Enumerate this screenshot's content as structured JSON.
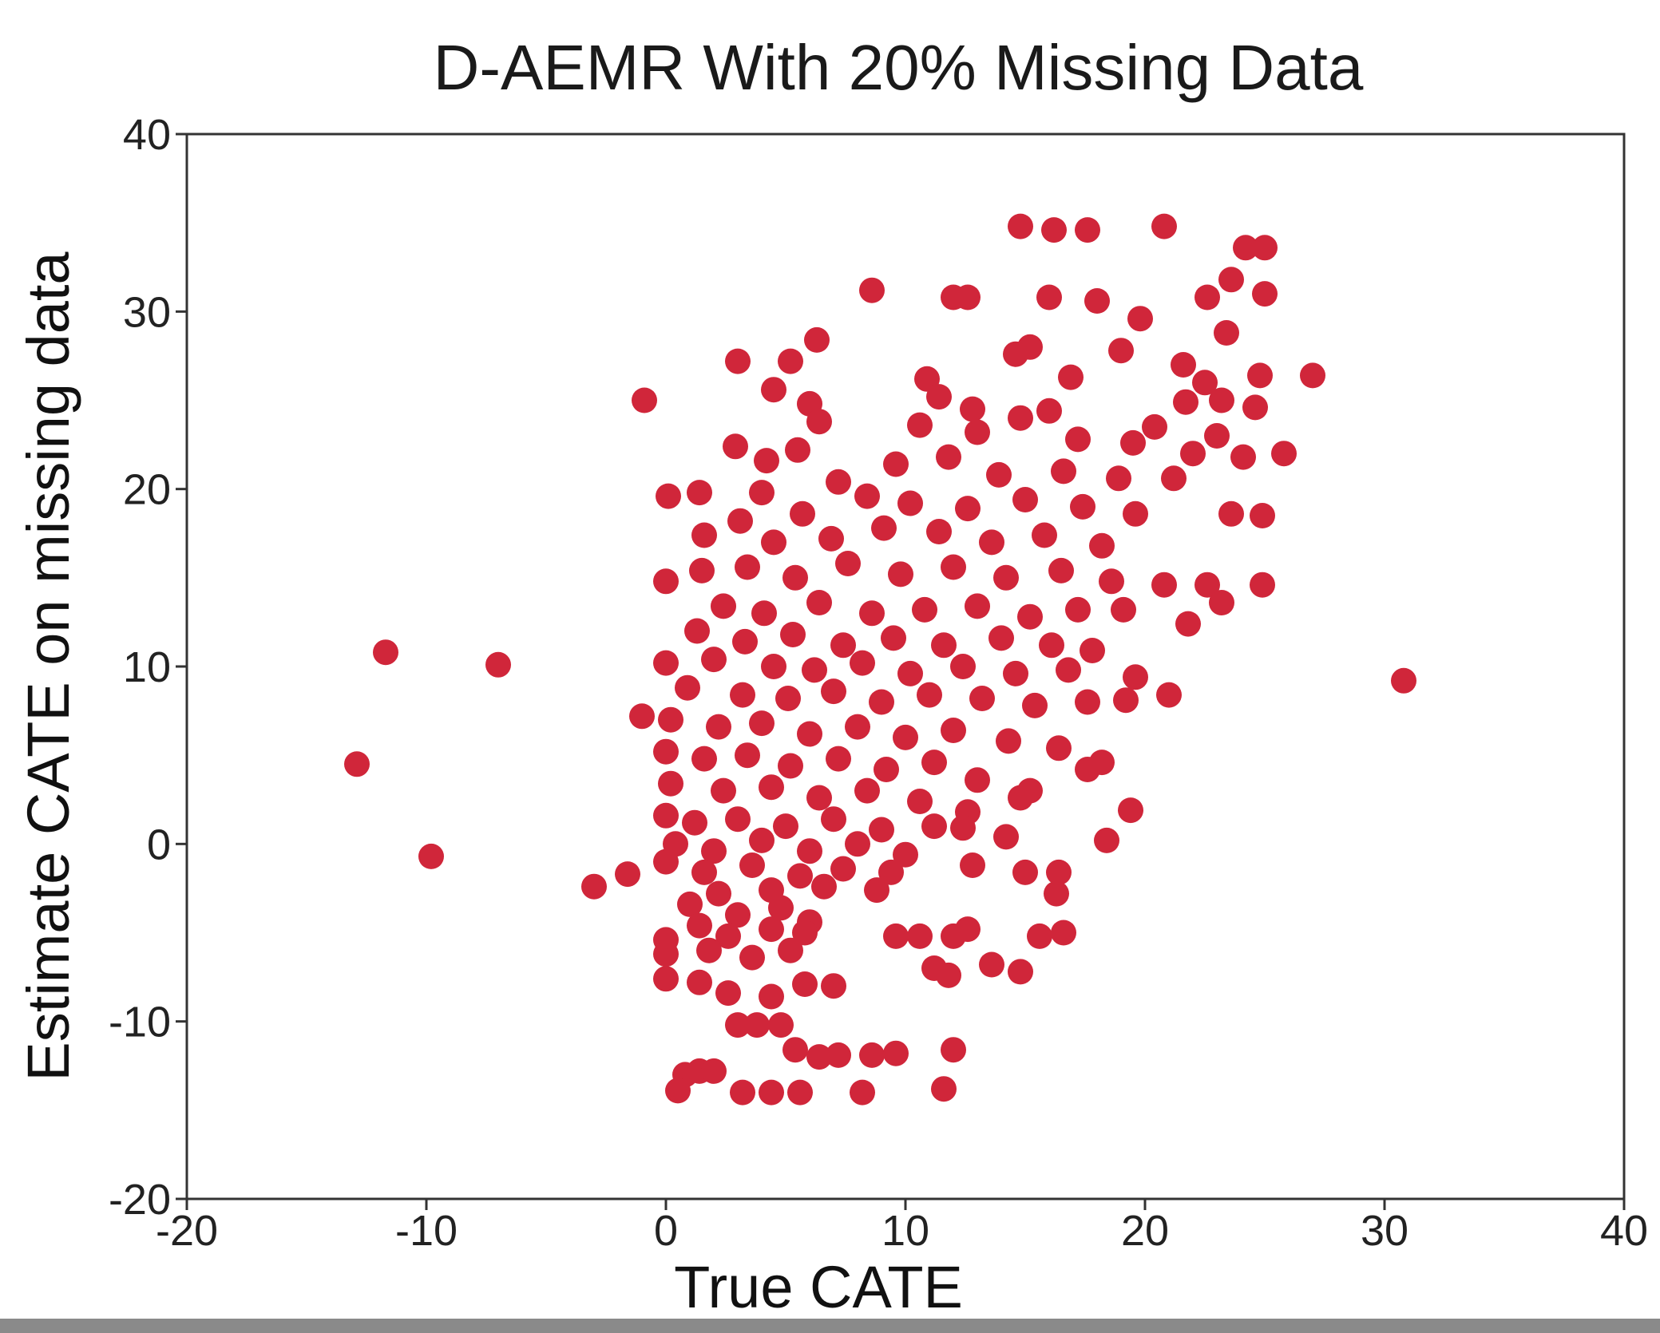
{
  "chart_data": {
    "type": "scatter",
    "title": "D-AEMR With 20% Missing Data",
    "xlabel": "True CATE",
    "ylabel": "Estimate CATE on missing data",
    "xlim": [
      -20,
      40
    ],
    "ylim": [
      -20,
      40
    ],
    "xticks": [
      "-20",
      "-10",
      "0",
      "10",
      "20",
      "30",
      "40"
    ],
    "yticks": [
      "-20",
      "-10",
      "0",
      "10",
      "20",
      "30",
      "40"
    ],
    "grid": false,
    "legend": "none",
    "marker_color": "#d0263a",
    "series": [
      {
        "points": [
          [
            -12.9,
            4.5
          ],
          [
            -11.7,
            10.8
          ],
          [
            -9.8,
            -0.7
          ],
          [
            -7.0,
            10.1
          ],
          [
            -3.0,
            -2.4
          ],
          [
            -1.6,
            -1.7
          ],
          [
            -0.9,
            25.0
          ],
          [
            -1.0,
            7.2
          ],
          [
            30.8,
            9.2
          ],
          [
            27.0,
            26.4
          ],
          [
            25.8,
            22.0
          ],
          [
            14.8,
            34.8
          ],
          [
            16.2,
            34.6
          ],
          [
            17.6,
            34.6
          ],
          [
            20.8,
            34.8
          ],
          [
            24.2,
            33.6
          ],
          [
            25.0,
            33.6
          ],
          [
            8.6,
            31.2
          ],
          [
            12.0,
            30.8
          ],
          [
            12.6,
            30.8
          ],
          [
            16.0,
            30.8
          ],
          [
            18.0,
            30.6
          ],
          [
            22.6,
            30.8
          ],
          [
            25.0,
            31.0
          ],
          [
            23.6,
            31.8
          ],
          [
            19.8,
            29.6
          ],
          [
            23.4,
            28.8
          ],
          [
            3.0,
            27.2
          ],
          [
            5.2,
            27.2
          ],
          [
            6.3,
            28.4
          ],
          [
            14.6,
            27.6
          ],
          [
            15.2,
            28.0
          ],
          [
            19.0,
            27.8
          ],
          [
            21.6,
            27.0
          ],
          [
            10.9,
            26.2
          ],
          [
            16.9,
            26.3
          ],
          [
            24.8,
            26.4
          ],
          [
            22.5,
            26.0
          ],
          [
            23.2,
            25.0
          ],
          [
            4.5,
            25.6
          ],
          [
            6.0,
            24.8
          ],
          [
            11.4,
            25.2
          ],
          [
            12.8,
            24.5
          ],
          [
            16.0,
            24.4
          ],
          [
            21.7,
            24.9
          ],
          [
            24.6,
            24.6
          ],
          [
            6.4,
            23.8
          ],
          [
            13.0,
            23.2
          ],
          [
            14.8,
            24.0
          ],
          [
            20.4,
            23.5
          ],
          [
            23.0,
            23.0
          ],
          [
            2.9,
            22.4
          ],
          [
            4.2,
            21.6
          ],
          [
            5.5,
            22.2
          ],
          [
            10.6,
            23.6
          ],
          [
            17.2,
            22.8
          ],
          [
            19.5,
            22.6
          ],
          [
            22.0,
            22.0
          ],
          [
            24.1,
            21.8
          ],
          [
            1.4,
            19.8
          ],
          [
            0.1,
            19.6
          ],
          [
            4.0,
            19.8
          ],
          [
            7.2,
            20.4
          ],
          [
            9.6,
            21.4
          ],
          [
            11.8,
            21.8
          ],
          [
            13.9,
            20.8
          ],
          [
            16.6,
            21.0
          ],
          [
            18.9,
            20.6
          ],
          [
            21.2,
            20.6
          ],
          [
            3.1,
            18.2
          ],
          [
            5.7,
            18.6
          ],
          [
            8.4,
            19.6
          ],
          [
            10.2,
            19.2
          ],
          [
            12.6,
            18.9
          ],
          [
            15.0,
            19.4
          ],
          [
            17.4,
            19.0
          ],
          [
            19.6,
            18.6
          ],
          [
            23.6,
            18.6
          ],
          [
            24.9,
            18.5
          ],
          [
            1.6,
            17.4
          ],
          [
            4.5,
            17.0
          ],
          [
            6.9,
            17.2
          ],
          [
            9.1,
            17.8
          ],
          [
            11.4,
            17.6
          ],
          [
            13.6,
            17.0
          ],
          [
            15.8,
            17.4
          ],
          [
            18.2,
            16.8
          ],
          [
            0.0,
            14.8
          ],
          [
            1.5,
            15.4
          ],
          [
            3.4,
            15.6
          ],
          [
            5.4,
            15.0
          ],
          [
            7.6,
            15.8
          ],
          [
            9.8,
            15.2
          ],
          [
            12.0,
            15.6
          ],
          [
            14.2,
            15.0
          ],
          [
            16.5,
            15.4
          ],
          [
            18.6,
            14.8
          ],
          [
            20.8,
            14.6
          ],
          [
            22.6,
            14.6
          ],
          [
            23.2,
            13.6
          ],
          [
            24.9,
            14.6
          ],
          [
            2.4,
            13.4
          ],
          [
            4.1,
            13.0
          ],
          [
            6.4,
            13.6
          ],
          [
            8.6,
            13.0
          ],
          [
            10.8,
            13.2
          ],
          [
            13.0,
            13.4
          ],
          [
            15.2,
            12.8
          ],
          [
            17.2,
            13.2
          ],
          [
            19.1,
            13.2
          ],
          [
            21.8,
            12.4
          ],
          [
            1.3,
            12.0
          ],
          [
            3.3,
            11.4
          ],
          [
            5.3,
            11.8
          ],
          [
            7.4,
            11.2
          ],
          [
            9.5,
            11.6
          ],
          [
            11.6,
            11.2
          ],
          [
            14.0,
            11.6
          ],
          [
            16.1,
            11.2
          ],
          [
            17.8,
            10.9
          ],
          [
            0.0,
            10.2
          ],
          [
            2.0,
            10.4
          ],
          [
            4.5,
            10.0
          ],
          [
            6.2,
            9.8
          ],
          [
            8.2,
            10.2
          ],
          [
            10.2,
            9.6
          ],
          [
            12.4,
            10.0
          ],
          [
            14.6,
            9.6
          ],
          [
            16.8,
            9.8
          ],
          [
            19.6,
            9.4
          ],
          [
            21.0,
            8.4
          ],
          [
            0.9,
            8.8
          ],
          [
            3.2,
            8.4
          ],
          [
            5.1,
            8.2
          ],
          [
            7.0,
            8.6
          ],
          [
            9.0,
            8.0
          ],
          [
            11.0,
            8.4
          ],
          [
            13.2,
            8.2
          ],
          [
            15.4,
            7.8
          ],
          [
            17.6,
            8.0
          ],
          [
            19.2,
            8.1
          ],
          [
            0.2,
            7.0
          ],
          [
            2.2,
            6.6
          ],
          [
            4.0,
            6.8
          ],
          [
            6.0,
            6.2
          ],
          [
            8.0,
            6.6
          ],
          [
            10.0,
            6.0
          ],
          [
            12.0,
            6.4
          ],
          [
            14.3,
            5.8
          ],
          [
            16.4,
            5.4
          ],
          [
            18.2,
            4.6
          ],
          [
            0.0,
            5.2
          ],
          [
            1.6,
            4.8
          ],
          [
            3.4,
            5.0
          ],
          [
            5.2,
            4.4
          ],
          [
            7.2,
            4.8
          ],
          [
            9.2,
            4.2
          ],
          [
            11.2,
            4.6
          ],
          [
            13.0,
            3.6
          ],
          [
            15.2,
            3.0
          ],
          [
            17.6,
            4.2
          ],
          [
            0.2,
            3.4
          ],
          [
            2.4,
            3.0
          ],
          [
            4.4,
            3.2
          ],
          [
            6.4,
            2.6
          ],
          [
            8.4,
            3.0
          ],
          [
            10.6,
            2.4
          ],
          [
            12.6,
            1.8
          ],
          [
            14.8,
            2.6
          ],
          [
            19.4,
            1.9
          ],
          [
            0.0,
            1.6
          ],
          [
            1.2,
            1.2
          ],
          [
            3.0,
            1.4
          ],
          [
            5.0,
            1.0
          ],
          [
            7.0,
            1.4
          ],
          [
            9.0,
            0.8
          ],
          [
            11.2,
            1.0
          ],
          [
            12.4,
            0.9
          ],
          [
            0.4,
            0.0
          ],
          [
            2.0,
            -0.4
          ],
          [
            4.0,
            0.2
          ],
          [
            6.0,
            -0.4
          ],
          [
            8.0,
            0.0
          ],
          [
            10.0,
            -0.6
          ],
          [
            14.2,
            0.4
          ],
          [
            18.4,
            0.2
          ],
          [
            0.0,
            -1.0
          ],
          [
            1.6,
            -1.6
          ],
          [
            3.6,
            -1.2
          ],
          [
            5.6,
            -1.8
          ],
          [
            7.4,
            -1.4
          ],
          [
            9.4,
            -1.6
          ],
          [
            12.8,
            -1.2
          ],
          [
            15.0,
            -1.6
          ],
          [
            16.4,
            -1.6
          ],
          [
            2.2,
            -2.8
          ],
          [
            4.4,
            -2.6
          ],
          [
            6.6,
            -2.4
          ],
          [
            8.8,
            -2.6
          ],
          [
            16.3,
            -2.8
          ],
          [
            1.0,
            -3.4
          ],
          [
            3.0,
            -4.0
          ],
          [
            4.8,
            -3.6
          ],
          [
            6.0,
            -4.4
          ],
          [
            1.4,
            -4.6
          ],
          [
            2.6,
            -5.2
          ],
          [
            4.4,
            -4.8
          ],
          [
            5.8,
            -5.0
          ],
          [
            0.0,
            -5.4
          ],
          [
            9.6,
            -5.2
          ],
          [
            10.6,
            -5.2
          ],
          [
            12.0,
            -5.2
          ],
          [
            12.6,
            -4.8
          ],
          [
            15.6,
            -5.2
          ],
          [
            16.6,
            -5.0
          ],
          [
            1.8,
            -6.0
          ],
          [
            3.6,
            -6.4
          ],
          [
            5.2,
            -6.0
          ],
          [
            0.0,
            -6.2
          ],
          [
            13.6,
            -6.8
          ],
          [
            14.8,
            -7.2
          ],
          [
            11.2,
            -7.0
          ],
          [
            11.8,
            -7.4
          ],
          [
            0.0,
            -7.6
          ],
          [
            1.4,
            -7.8
          ],
          [
            2.6,
            -8.4
          ],
          [
            4.4,
            -8.6
          ],
          [
            5.8,
            -7.9
          ],
          [
            7.0,
            -8.0
          ],
          [
            3.0,
            -10.2
          ],
          [
            3.8,
            -10.2
          ],
          [
            4.8,
            -10.2
          ],
          [
            5.4,
            -11.6
          ],
          [
            6.4,
            -12.0
          ],
          [
            7.2,
            -11.9
          ],
          [
            8.6,
            -11.9
          ],
          [
            9.6,
            -11.8
          ],
          [
            12.0,
            -11.6
          ],
          [
            0.8,
            -13.0
          ],
          [
            1.4,
            -12.8
          ],
          [
            2.0,
            -12.8
          ],
          [
            0.5,
            -13.9
          ],
          [
            3.2,
            -14.0
          ],
          [
            4.4,
            -14.0
          ],
          [
            5.6,
            -14.0
          ],
          [
            8.2,
            -14.0
          ],
          [
            11.6,
            -13.8
          ]
        ]
      }
    ]
  }
}
